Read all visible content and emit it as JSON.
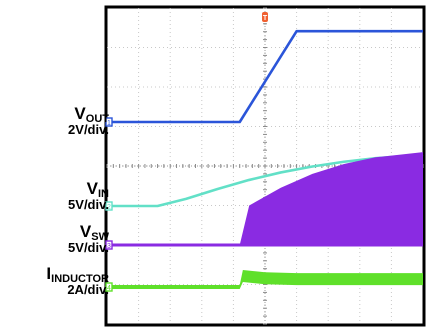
{
  "chart_data": {
    "type": "line",
    "title": "",
    "grid": true,
    "grid_divisions": {
      "x": 10,
      "y": 8
    },
    "trigger_marker": "T",
    "series": [
      {
        "name": "VOUT",
        "label_main": "V",
        "label_sub": "OUT",
        "scale": "2V/div.",
        "channel_marker": "1",
        "color": "#2b55d9",
        "style": "line",
        "x": [
          0,
          4.2,
          6.0,
          10
        ],
        "y": [
          0,
          0,
          2.3,
          2.3
        ]
      },
      {
        "name": "VIN",
        "label_main": "V",
        "label_sub": "IN",
        "scale": "5V/div.",
        "channel_marker": "2",
        "color": "#62e0c7",
        "style": "line",
        "x": [
          0,
          1.6,
          2.5,
          3.5,
          4.5,
          5.5,
          6.5,
          7.5,
          8.5,
          10
        ],
        "y": [
          0,
          0,
          0.18,
          0.43,
          0.66,
          0.85,
          1.0,
          1.12,
          1.21,
          1.3
        ]
      },
      {
        "name": "VSW",
        "label_main": "V",
        "label_sub": "SW",
        "scale": "5V/div.",
        "channel_marker": "3",
        "color": "#8a2be2",
        "style": "band",
        "x": [
          0,
          4.2,
          4.5,
          5.5,
          6.5,
          7.5,
          8.5,
          10
        ],
        "y": [
          0,
          0,
          1.0,
          1.45,
          1.8,
          2.05,
          2.22,
          2.35
        ]
      },
      {
        "name": "IINDUCTOR",
        "label_main": "I",
        "label_sub": "INDUCTOR",
        "scale": "2A/div.",
        "channel_marker": "4",
        "color": "#5fe02a",
        "style": "band",
        "x": [
          0,
          4.2,
          4.3,
          5.0,
          6.0,
          10
        ],
        "y": [
          0,
          0,
          0.28,
          0.22,
          0.2,
          0.2
        ]
      }
    ]
  }
}
